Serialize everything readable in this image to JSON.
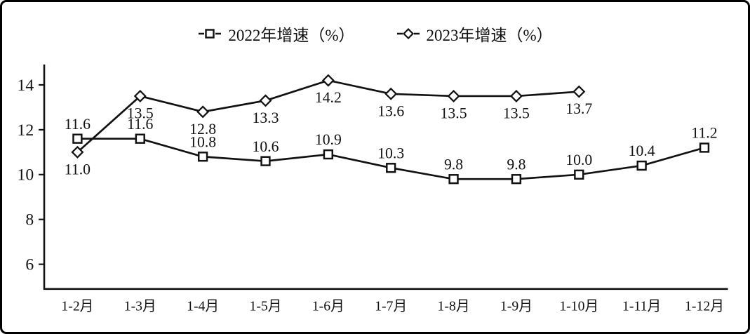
{
  "chart_data": {
    "type": "line",
    "title": "",
    "xlabel": "",
    "ylabel": "",
    "categories": [
      "1-2月",
      "1-3月",
      "1-4月",
      "1-5月",
      "1-6月",
      "1-7月",
      "1-8月",
      "1-9月",
      "1-10月",
      "1-11月",
      "1-12月"
    ],
    "series": [
      {
        "name": "2022年增速（%）",
        "marker": "square",
        "label_position": "above",
        "values": [
          11.6,
          11.6,
          10.8,
          10.6,
          10.9,
          10.3,
          9.8,
          9.8,
          10.0,
          10.4,
          11.2
        ]
      },
      {
        "name": "2023年增速（%）",
        "marker": "diamond",
        "label_position": "below",
        "values": [
          11.0,
          13.5,
          12.8,
          13.3,
          14.2,
          13.6,
          13.5,
          13.5,
          13.7
        ]
      }
    ],
    "yticks": [
      6,
      8,
      10,
      12,
      14
    ],
    "ylim": [
      4.9,
      14.85
    ],
    "grid": false,
    "legend_position": "top-center",
    "line_color": "#111111",
    "marker_fill": "#ffffff",
    "text_color": "#111111"
  }
}
